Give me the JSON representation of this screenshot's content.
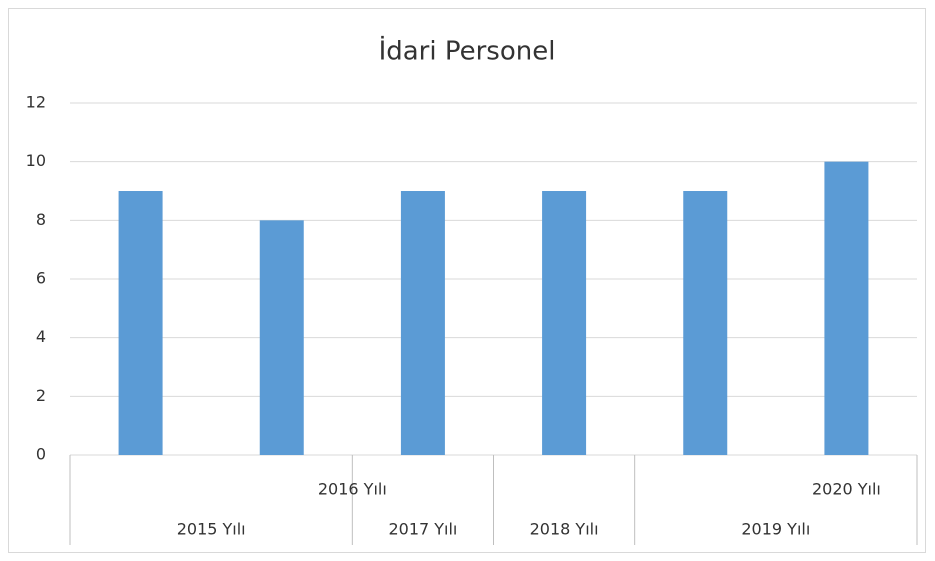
{
  "chart_data": {
    "type": "bar",
    "title": "İdari Personel",
    "categories": [
      "2015 Yılı",
      "2016 Yılı",
      "2017 Yılı",
      "2018 Yılı",
      "2019 Yılı",
      "2020 Yılı"
    ],
    "values": [
      9,
      8,
      9,
      9,
      9,
      10
    ],
    "color": "#5b9bd5",
    "ylim": [
      0,
      12
    ],
    "yticks": [
      0,
      2,
      4,
      6,
      8,
      10,
      12
    ],
    "grid": true
  }
}
